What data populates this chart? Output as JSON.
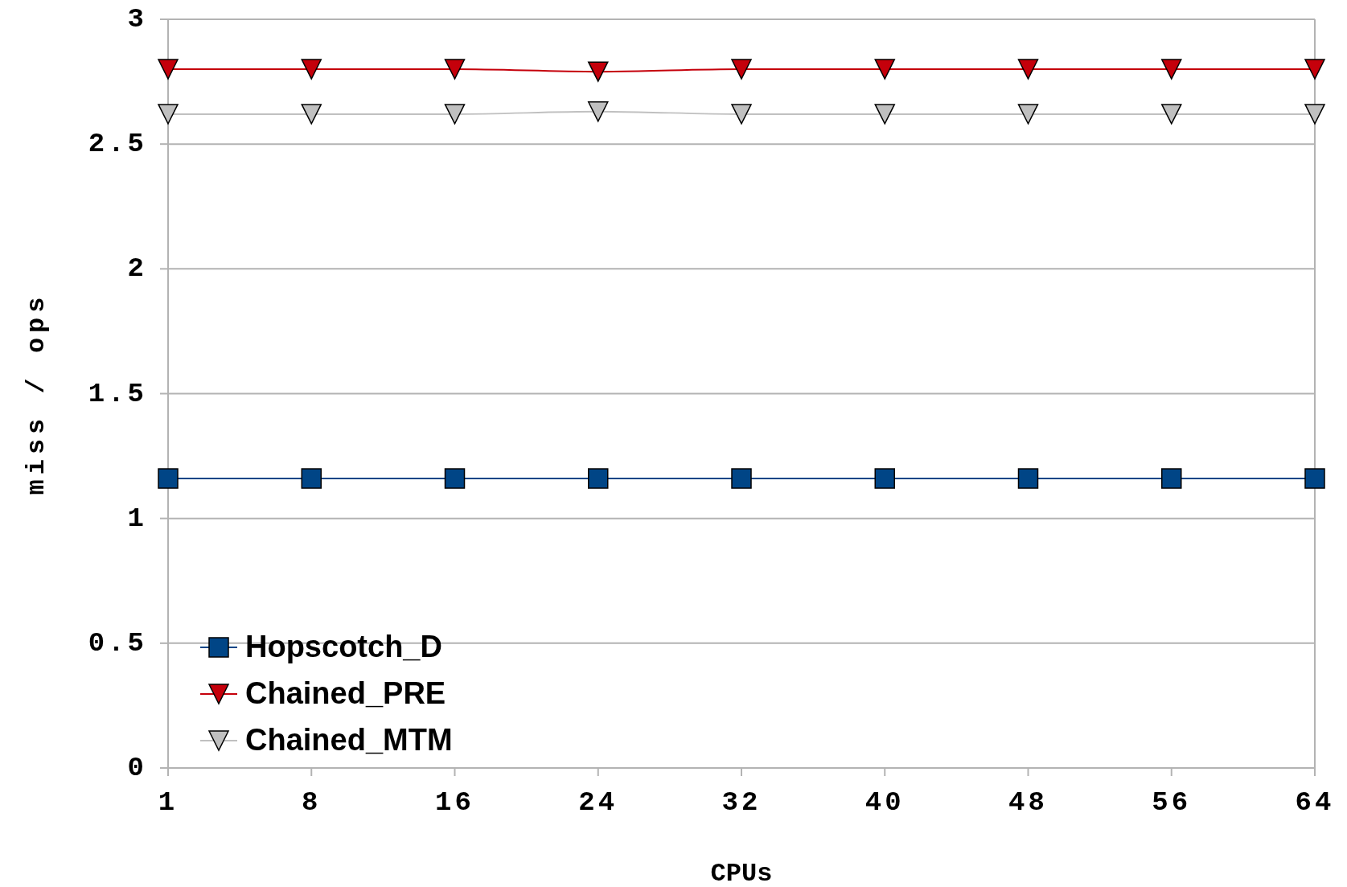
{
  "chart_data": {
    "type": "line",
    "xlabel": "CPUs",
    "ylabel": "miss / ops",
    "categories": [
      "1",
      "8",
      "16",
      "24",
      "32",
      "40",
      "48",
      "56",
      "64"
    ],
    "ylim": [
      0,
      3
    ],
    "yticks": [
      0,
      0.5,
      1,
      1.5,
      2,
      2.5,
      3
    ],
    "grid": "y",
    "legend": "bottom left",
    "series": [
      {
        "name": "Hopscotch_D",
        "color": "#004586",
        "marker": "square",
        "values": [
          1.16,
          1.16,
          1.16,
          1.16,
          1.16,
          1.16,
          1.16,
          1.16,
          1.16
        ]
      },
      {
        "name": "Chained_PRE",
        "color": "#c5000b",
        "marker": "triangle",
        "values": [
          2.8,
          2.8,
          2.8,
          2.79,
          2.8,
          2.8,
          2.8,
          2.8,
          2.8
        ]
      },
      {
        "name": "Chained_MTM",
        "color": "#c0c0c0",
        "marker": "triangle",
        "values": [
          2.62,
          2.62,
          2.62,
          2.63,
          2.62,
          2.62,
          2.62,
          2.62,
          2.62
        ]
      }
    ]
  }
}
